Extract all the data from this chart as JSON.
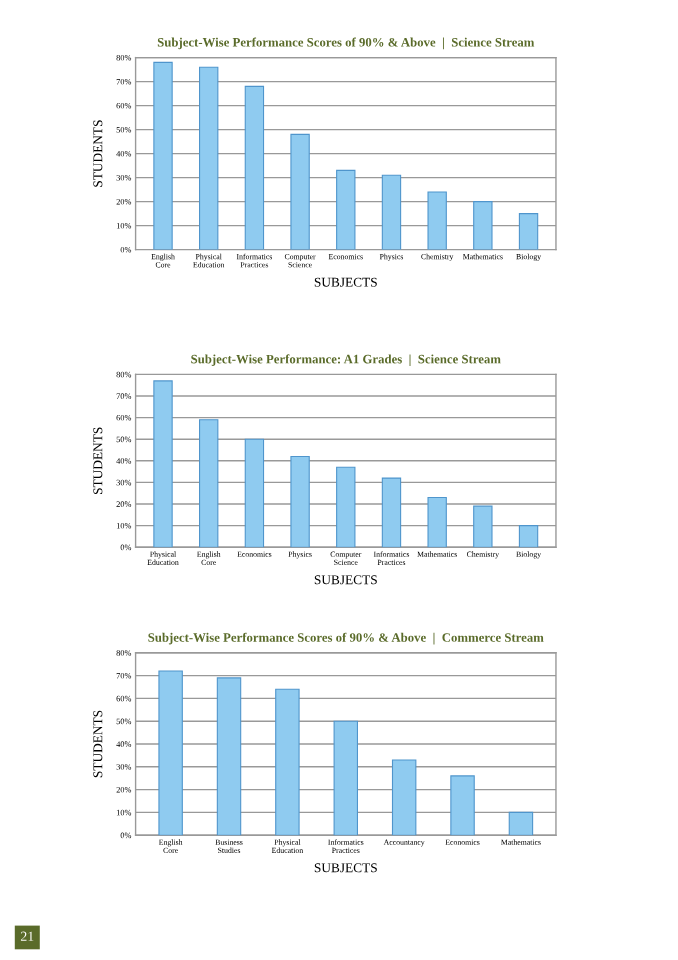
{
  "chart_data": [
    {
      "type": "bar",
      "title": "Subject-Wise Performance Scores of 90% & Above  |  Science Stream",
      "xlabel": "SUBJECTS",
      "ylabel": "STUDENTS",
      "categories": [
        "English\nCore",
        "Physical\nEducation",
        "Informatics\nPractices",
        "Computer\nScience",
        "Economics",
        "Physics",
        "Chemistry",
        "Mathematics",
        "Biology"
      ],
      "values": [
        78,
        76,
        68,
        48,
        33,
        31,
        24,
        20,
        15
      ],
      "color": "#8fcbf0",
      "ylim": [
        0,
        80
      ],
      "yticks": [
        {
          "value": 0,
          "label": "0%"
        },
        {
          "value": 10,
          "label": "10%"
        },
        {
          "value": 20,
          "label": "20%"
        },
        {
          "value": 30,
          "label": "30%"
        },
        {
          "value": 40,
          "label": "40%"
        },
        {
          "value": 50,
          "label": "50%"
        },
        {
          "value": 60,
          "label": "60%"
        },
        {
          "value": 70,
          "label": "70%"
        },
        {
          "value": 80,
          "label": "80%"
        }
      ],
      "grid": "y"
    },
    {
      "type": "bar",
      "title": "Subject-Wise Performance: A1 Grades  |  Science Stream",
      "xlabel": "SUBJECTS",
      "ylabel": "STUDENTS",
      "categories": [
        "Physical\nEducation",
        "English\nCore",
        "Economics",
        "Physics",
        "Computer\nScience",
        "Informatics\nPractices",
        "Mathematics",
        "Chemistry",
        "Biology"
      ],
      "values": [
        77,
        59,
        50,
        42,
        37,
        32,
        23,
        19,
        10
      ],
      "color": "#8fcbf0",
      "ylim": [
        0,
        80
      ],
      "yticks": [
        {
          "value": 0,
          "label": "0%"
        },
        {
          "value": 10,
          "label": "10%"
        },
        {
          "value": 20,
          "label": "20%"
        },
        {
          "value": 30,
          "label": "30%"
        },
        {
          "value": 40,
          "label": "40%"
        },
        {
          "value": 50,
          "label": "50%"
        },
        {
          "value": 60,
          "label": "60%"
        },
        {
          "value": 70,
          "label": "70%"
        },
        {
          "value": 80,
          "label": "80%"
        }
      ],
      "grid": "y"
    },
    {
      "type": "bar",
      "title": "Subject-Wise Performance Scores of 90% & Above  |  Commerce Stream",
      "xlabel": "SUBJECTS",
      "ylabel": "STUDENTS",
      "categories": [
        "English\nCore",
        "Business\nStudies",
        "Physical\nEducation",
        "Informatics\nPractices",
        "Accountancy",
        "Economics",
        "Mathematics"
      ],
      "values": [
        72,
        69,
        64,
        50,
        33,
        26,
        10
      ],
      "color": "#8fcbf0",
      "ylim": [
        0,
        80
      ],
      "yticks": [
        {
          "value": 0,
          "label": "0%"
        },
        {
          "value": 10,
          "label": "10%"
        },
        {
          "value": 20,
          "label": "20%"
        },
        {
          "value": 30,
          "label": "30%"
        },
        {
          "value": 40,
          "label": "40%"
        },
        {
          "value": 50,
          "label": "50%"
        },
        {
          "value": 60,
          "label": "60%"
        },
        {
          "value": 70,
          "label": "70%"
        },
        {
          "value": 80,
          "label": "80%"
        }
      ],
      "grid": "y",
      "annotations": [
        "21"
      ]
    }
  ]
}
